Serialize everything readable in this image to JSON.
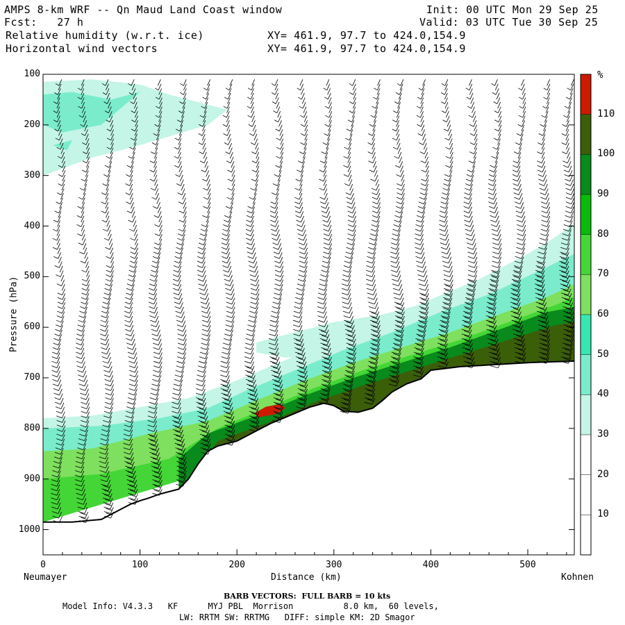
{
  "header": {
    "title": "AMPS 8-km WRF -- Qn Maud Land Coast window",
    "fcst": "Fcst:   27 h",
    "field1": "Relative humidity (w.r.t. ice)",
    "field2": "Horizontal wind vectors",
    "init": "Init: 00 UTC Mon 29 Sep 25",
    "valid": "Valid: 03 UTC Tue 30 Sep 25",
    "xy1": "XY= 461.9, 97.7 to 424.0,154.9",
    "xy2": "XY= 461.9, 97.7 to 424.0,154.9"
  },
  "chart_data": {
    "type": "heatmap",
    "title": "Relative humidity (w.r.t. ice) cross section, Neumayer to Kohnen",
    "xlabel": "Distance (km)",
    "ylabel": "Pressure (hPa)",
    "xlim": [
      0,
      548
    ],
    "ylim": [
      1050,
      100
    ],
    "x_ticks": [
      0,
      100,
      200,
      300,
      400,
      500
    ],
    "y_ticks": [
      100,
      200,
      300,
      400,
      500,
      600,
      700,
      800,
      900,
      1000
    ],
    "left_station": "Neumayer",
    "right_station": "Kohnen",
    "colorbar": {
      "unit": "%",
      "levels": [
        10,
        20,
        30,
        40,
        50,
        60,
        70,
        80,
        90,
        100,
        110
      ],
      "colors": [
        "#ffffff",
        "#ffffff",
        "#ffffff",
        "#c4f5e6",
        "#7aeccc",
        "#37e7b1",
        "#7ee05e",
        "#44d636",
        "#07bc0a",
        "#088a1c",
        "#3b5e09",
        "#cc1b00"
      ]
    },
    "terrain_profile": {
      "x_km": [
        0,
        30,
        60,
        70,
        90,
        100,
        110,
        120,
        140,
        150,
        160,
        170,
        180,
        200,
        220,
        235,
        250,
        275,
        290,
        300,
        310,
        325,
        340,
        350,
        360,
        375,
        390,
        400,
        430,
        500,
        548
      ],
      "p_hpa": [
        985,
        985,
        980,
        970,
        950,
        943,
        937,
        930,
        920,
        900,
        870,
        845,
        835,
        825,
        805,
        790,
        778,
        758,
        750,
        755,
        766,
        768,
        760,
        745,
        728,
        712,
        702,
        685,
        678,
        670,
        667
      ]
    },
    "rh_layers": [
      {
        "rh": 35,
        "points": [
          [
            0,
            780
          ],
          [
            50,
            775
          ],
          [
            100,
            758
          ],
          [
            150,
            740
          ],
          [
            200,
            705
          ],
          [
            250,
            665
          ],
          [
            300,
            625
          ],
          [
            350,
            590
          ],
          [
            400,
            545
          ],
          [
            450,
            505
          ],
          [
            500,
            455
          ],
          [
            548,
            400
          ],
          [
            548,
            667
          ],
          [
            0,
            985
          ]
        ]
      },
      {
        "rh": 45,
        "points": [
          [
            0,
            800
          ],
          [
            60,
            795
          ],
          [
            120,
            780
          ],
          [
            170,
            760
          ],
          [
            210,
            725
          ],
          [
            260,
            685
          ],
          [
            310,
            645
          ],
          [
            360,
            610
          ],
          [
            410,
            570
          ],
          [
            460,
            535
          ],
          [
            510,
            490
          ],
          [
            548,
            455
          ],
          [
            548,
            667
          ],
          [
            0,
            985
          ]
        ]
      },
      {
        "rh": 65,
        "points": [
          [
            0,
            845
          ],
          [
            50,
            840
          ],
          [
            110,
            810
          ],
          [
            170,
            785
          ],
          [
            220,
            745
          ],
          [
            270,
            705
          ],
          [
            320,
            670
          ],
          [
            370,
            640
          ],
          [
            420,
            610
          ],
          [
            470,
            575
          ],
          [
            520,
            540
          ],
          [
            548,
            515
          ],
          [
            548,
            667
          ],
          [
            0,
            985
          ]
        ]
      },
      {
        "rh": 75,
        "points": [
          [
            0,
            900
          ],
          [
            60,
            890
          ],
          [
            130,
            860
          ],
          [
            180,
            800
          ],
          [
            230,
            760
          ],
          [
            280,
            720
          ],
          [
            330,
            685
          ],
          [
            380,
            655
          ],
          [
            430,
            625
          ],
          [
            480,
            590
          ],
          [
            530,
            555
          ],
          [
            548,
            540
          ],
          [
            548,
            667
          ],
          [
            0,
            985
          ]
        ]
      },
      {
        "rh": 95,
        "points": [
          [
            140,
            860
          ],
          [
            170,
            810
          ],
          [
            220,
            775
          ],
          [
            270,
            735
          ],
          [
            320,
            700
          ],
          [
            370,
            670
          ],
          [
            420,
            640
          ],
          [
            470,
            605
          ],
          [
            520,
            570
          ],
          [
            548,
            560
          ],
          [
            548,
            667
          ],
          [
            140,
            920
          ]
        ]
      },
      {
        "rh": 105,
        "points": [
          [
            160,
            880
          ],
          [
            180,
            825
          ],
          [
            230,
            790
          ],
          [
            280,
            748
          ],
          [
            330,
            715
          ],
          [
            380,
            685
          ],
          [
            430,
            655
          ],
          [
            480,
            625
          ],
          [
            530,
            595
          ],
          [
            548,
            590
          ],
          [
            548,
            667
          ],
          [
            160,
            900
          ]
        ]
      },
      {
        "rh": 112,
        "points": [
          [
            218,
            770
          ],
          [
            230,
            757
          ],
          [
            245,
            752
          ],
          [
            250,
            760
          ],
          [
            240,
            772
          ],
          [
            222,
            778
          ]
        ]
      }
    ],
    "rh_upper_patches": [
      {
        "rh": 35,
        "points": [
          [
            0,
            115
          ],
          [
            50,
            110
          ],
          [
            100,
            120
          ],
          [
            130,
            140
          ],
          [
            190,
            170
          ],
          [
            170,
            200
          ],
          [
            100,
            240
          ],
          [
            50,
            265
          ],
          [
            0,
            300
          ]
        ]
      },
      {
        "rh": 45,
        "points": [
          [
            0,
            140
          ],
          [
            30,
            135
          ],
          [
            70,
            150
          ],
          [
            100,
            135
          ],
          [
            60,
            200
          ],
          [
            20,
            215
          ],
          [
            0,
            200
          ]
        ]
      },
      {
        "rh": 45,
        "points": [
          [
            10,
            240
          ],
          [
            30,
            230
          ],
          [
            25,
            250
          ]
        ]
      },
      {
        "rh": 35,
        "points": [
          [
            220,
            630
          ],
          [
            260,
            610
          ],
          [
            300,
            590
          ],
          [
            350,
            575
          ],
          [
            400,
            550
          ],
          [
            450,
            510
          ],
          [
            500,
            460
          ],
          [
            548,
            395
          ],
          [
            548,
            430
          ],
          [
            500,
            500
          ],
          [
            450,
            560
          ],
          [
            400,
            600
          ],
          [
            350,
            640
          ],
          [
            300,
            655
          ],
          [
            250,
            660
          ],
          [
            220,
            650
          ]
        ]
      }
    ],
    "wind_barbs": {
      "unit": "kts",
      "description": "Columns of barbs every ~25 km; mostly light winds aloft, stronger near the slope and toward Kohnen"
    }
  },
  "footer": {
    "barb_note": "BARB VECTORS:  FULL BARB = 10 kts",
    "model_info": "Model Info: V4.3.3   KF      MYJ PBL  Morrison          8.0 km,  60 levels,",
    "model_info2": "LW: RRTM SW: RRTMG   DIFF: simple KM: 2D Smagor"
  }
}
